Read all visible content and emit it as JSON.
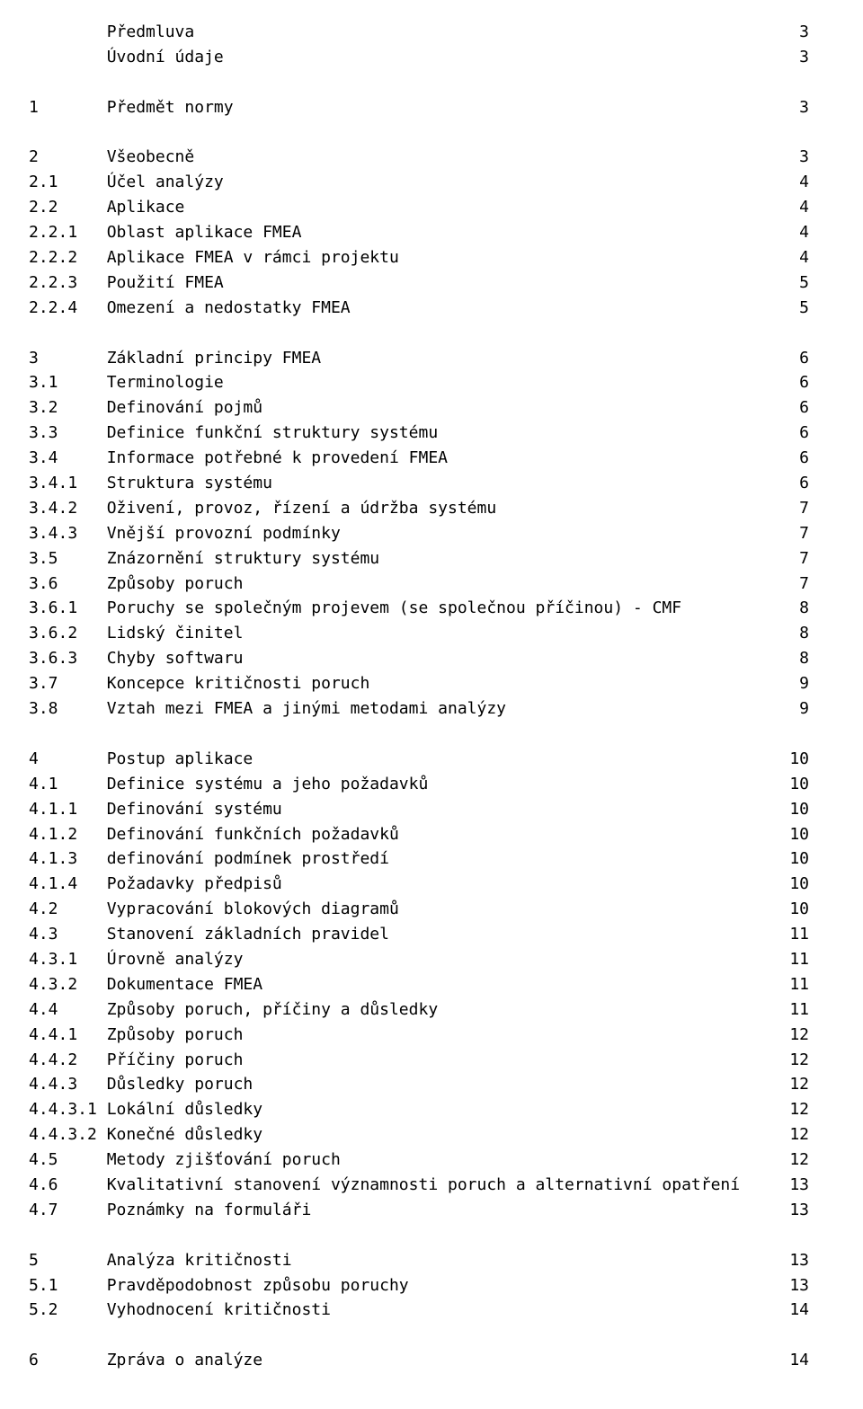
{
  "layout": {
    "num_col_width_ch": 8,
    "heading_indent_ch": 8
  },
  "toc": [
    {
      "type": "heading",
      "title": "Předmluva",
      "page": "3"
    },
    {
      "type": "heading",
      "title": "Úvodní údaje",
      "page": "3"
    },
    {
      "type": "gap"
    },
    {
      "type": "entry",
      "num": "1",
      "title": "Předmět normy",
      "page": "3"
    },
    {
      "type": "gap"
    },
    {
      "type": "entry",
      "num": "2",
      "title": "Všeobecně",
      "page": "3"
    },
    {
      "type": "entry",
      "num": "2.1",
      "title": "Účel analýzy",
      "page": "4"
    },
    {
      "type": "entry",
      "num": "2.2",
      "title": "Aplikace",
      "page": "4"
    },
    {
      "type": "entry",
      "num": "2.2.1",
      "title": "Oblast aplikace FMEA",
      "page": "4"
    },
    {
      "type": "entry",
      "num": "2.2.2",
      "title": "Aplikace FMEA v rámci projektu",
      "page": "4"
    },
    {
      "type": "entry",
      "num": "2.2.3",
      "title": "Použití FMEA",
      "page": "5"
    },
    {
      "type": "entry",
      "num": "2.2.4",
      "title": "Omezení a nedostatky FMEA",
      "page": "5"
    },
    {
      "type": "gap"
    },
    {
      "type": "entry",
      "num": "3",
      "title": "Základní principy FMEA",
      "page": "6"
    },
    {
      "type": "entry",
      "num": "3.1",
      "title": "Terminologie",
      "page": "6"
    },
    {
      "type": "entry",
      "num": "3.2",
      "title": "Definování pojmů",
      "page": "6"
    },
    {
      "type": "entry",
      "num": "3.3",
      "title": "Definice funkční struktury systému",
      "page": "6"
    },
    {
      "type": "entry",
      "num": "3.4",
      "title": "Informace potřebné k provedení FMEA",
      "page": "6"
    },
    {
      "type": "entry",
      "num": "3.4.1",
      "title": "Struktura systému",
      "page": "6"
    },
    {
      "type": "entry",
      "num": "3.4.2",
      "title": "Oživení, provoz, řízení a údržba systému",
      "page": "7"
    },
    {
      "type": "entry",
      "num": "3.4.3",
      "title": "Vnější provozní podmínky",
      "page": "7"
    },
    {
      "type": "entry",
      "num": "3.5",
      "title": "Znázornění struktury systému",
      "page": "7"
    },
    {
      "type": "entry",
      "num": "3.6",
      "title": "Způsoby poruch",
      "page": "7"
    },
    {
      "type": "entry",
      "num": "3.6.1",
      "title": "Poruchy se společným projevem (se společnou příčinou) - CMF",
      "page": "8"
    },
    {
      "type": "entry",
      "num": "3.6.2",
      "title": "Lidský činitel",
      "page": "8"
    },
    {
      "type": "entry",
      "num": "3.6.3",
      "title": "Chyby softwaru",
      "page": "8"
    },
    {
      "type": "entry",
      "num": "3.7",
      "title": "Koncepce kritičnosti poruch",
      "page": "9"
    },
    {
      "type": "entry",
      "num": "3.8",
      "title": "Vztah mezi FMEA a jinými metodami analýzy",
      "page": "9"
    },
    {
      "type": "gap"
    },
    {
      "type": "entry",
      "num": "4",
      "title": "Postup aplikace",
      "page": "10"
    },
    {
      "type": "entry",
      "num": "4.1",
      "title": "Definice systému a jeho požadavků",
      "page": "10"
    },
    {
      "type": "entry",
      "num": "4.1.1",
      "title": "Definování systému",
      "page": "10"
    },
    {
      "type": "entry",
      "num": "4.1.2",
      "title": "Definování funkčních požadavků",
      "page": "10"
    },
    {
      "type": "entry",
      "num": "4.1.3",
      "title": "definování podmínek prostředí",
      "page": "10"
    },
    {
      "type": "entry",
      "num": "4.1.4",
      "title": "Požadavky předpisů",
      "page": "10"
    },
    {
      "type": "entry",
      "num": "4.2",
      "title": "Vypracování blokových diagramů",
      "page": "10"
    },
    {
      "type": "entry",
      "num": "4.3",
      "title": "Stanovení základních pravidel",
      "page": "11"
    },
    {
      "type": "entry",
      "num": "4.3.1",
      "title": "Úrovně analýzy",
      "page": "11"
    },
    {
      "type": "entry",
      "num": "4.3.2",
      "title": "Dokumentace FMEA",
      "page": "11"
    },
    {
      "type": "entry",
      "num": "4.4",
      "title": "Způsoby poruch, příčiny a důsledky",
      "page": "11"
    },
    {
      "type": "entry",
      "num": "4.4.1",
      "title": "Způsoby poruch",
      "page": "12"
    },
    {
      "type": "entry",
      "num": "4.4.2",
      "title": "Příčiny poruch",
      "page": "12"
    },
    {
      "type": "entry",
      "num": "4.4.3",
      "title": "Důsledky poruch",
      "page": "12"
    },
    {
      "type": "entry",
      "num": "4.4.3.1",
      "title": "Lokální důsledky",
      "page": "12",
      "tight": true
    },
    {
      "type": "entry",
      "num": "4.4.3.2",
      "title": "Konečné důsledky",
      "page": "12",
      "tight": true
    },
    {
      "type": "entry",
      "num": "4.5",
      "title": "Metody zjišťování poruch",
      "page": "12"
    },
    {
      "type": "entry",
      "num": "4.6",
      "title": "Kvalitativní stanovení významnosti poruch a alternativní opatření",
      "page": "13"
    },
    {
      "type": "entry",
      "num": "4.7",
      "title": "Poznámky na formuláři",
      "page": "13"
    },
    {
      "type": "gap"
    },
    {
      "type": "entry",
      "num": "5",
      "title": "Analýza kritičnosti",
      "page": "13"
    },
    {
      "type": "entry",
      "num": "5.1",
      "title": "Pravděpodobnost způsobu poruchy",
      "page": "13"
    },
    {
      "type": "entry",
      "num": "5.2",
      "title": "Vyhodnocení kritičnosti",
      "page": "14"
    },
    {
      "type": "gap"
    },
    {
      "type": "entry",
      "num": "6",
      "title": "Zpráva o analýze",
      "page": "14"
    }
  ]
}
